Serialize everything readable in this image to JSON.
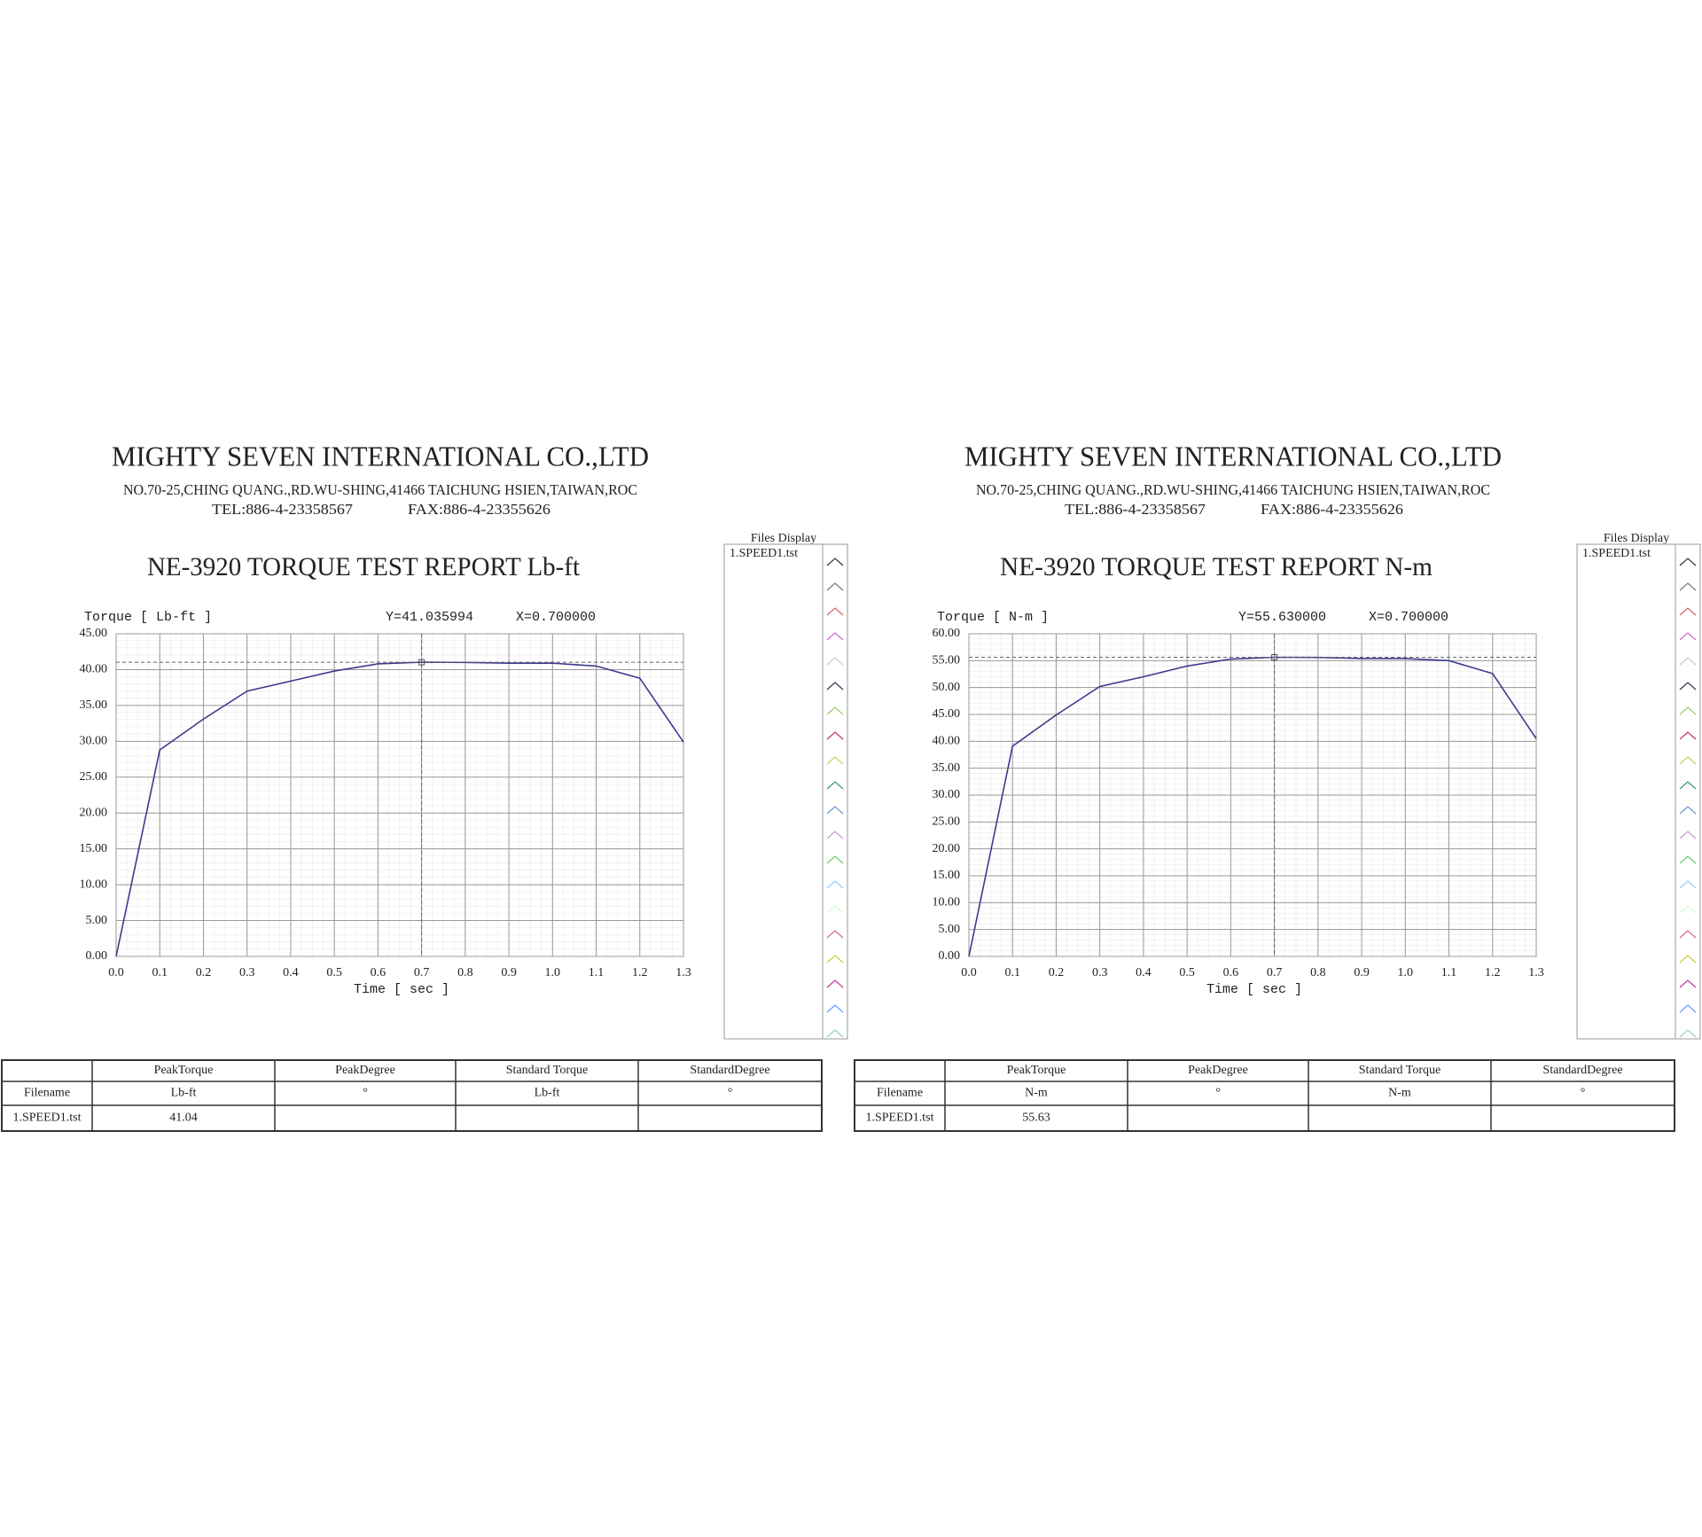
{
  "chart_data": [
    {
      "type": "line",
      "title": "NE-3920 TORQUE TEST REPORT Lb-ft",
      "y_label": "Torque [ Lb-ft ]",
      "x_label": "Time [ sec ]",
      "x": [
        0,
        0.1,
        0.2,
        0.3,
        0.4,
        0.5,
        0.6,
        0.7,
        0.8,
        0.9,
        1.0,
        1.1,
        1.2,
        1.3
      ],
      "values": [
        0,
        28.8,
        33.1,
        37.0,
        38.4,
        39.8,
        40.8,
        41.04,
        41.0,
        40.9,
        40.9,
        40.5,
        38.8,
        29.9
      ],
      "color": "#3b3b8f",
      "xlim": [
        0,
        1.3
      ],
      "ylim": [
        0,
        45
      ],
      "xticks": [
        {
          "value": 0,
          "label": "0.0"
        },
        0.1,
        0.2,
        0.3,
        0.4,
        0.5,
        0.6,
        0.7,
        0.8,
        0.9,
        {
          "value": 1,
          "label": "1.0"
        },
        1.1,
        1.2,
        1.3
      ],
      "yticks": [
        {
          "value": 0,
          "label": "0.00"
        },
        {
          "value": 5,
          "label": "5.00"
        },
        {
          "value": 10,
          "label": "10.00"
        },
        {
          "value": 15,
          "label": "15.00"
        },
        {
          "value": 20,
          "label": "20.00"
        },
        {
          "value": 25,
          "label": "25.00"
        },
        {
          "value": 30,
          "label": "30.00"
        },
        {
          "value": 35,
          "label": "35.00"
        },
        {
          "value": 40,
          "label": "40.00"
        },
        {
          "value": 45,
          "label": "45.00"
        }
      ],
      "grid": true,
      "cursor_y": {
        "value": 41.035994,
        "label": "Y=41.035994"
      },
      "cursor_x": {
        "value": 0.7,
        "label": "X=0.700000"
      }
    },
    {
      "type": "line",
      "title": "NE-3920 TORQUE TEST REPORT N-m",
      "y_label": "Torque [ N-m ]",
      "x_label": "Time [ sec ]",
      "x": [
        0,
        0.1,
        0.2,
        0.3,
        0.4,
        0.5,
        0.6,
        0.7,
        0.8,
        0.9,
        1.0,
        1.1,
        1.2,
        1.3
      ],
      "values": [
        0,
        39.1,
        44.9,
        50.2,
        52.0,
        54.0,
        55.3,
        55.63,
        55.6,
        55.4,
        55.4,
        55.0,
        52.6,
        40.5
      ],
      "color": "#3b3b8f",
      "xlim": [
        0,
        1.3
      ],
      "ylim": [
        0,
        60
      ],
      "xticks": [
        {
          "value": 0,
          "label": "0.0"
        },
        0.1,
        0.2,
        0.3,
        0.4,
        0.5,
        0.6,
        0.7,
        0.8,
        0.9,
        {
          "value": 1,
          "label": "1.0"
        },
        1.1,
        1.2,
        1.3
      ],
      "yticks": [
        {
          "value": 0,
          "label": "0.00"
        },
        {
          "value": 5,
          "label": "5.00"
        },
        {
          "value": 10,
          "label": "10.00"
        },
        {
          "value": 15,
          "label": "15.00"
        },
        {
          "value": 20,
          "label": "20.00"
        },
        {
          "value": 25,
          "label": "25.00"
        },
        {
          "value": 30,
          "label": "30.00"
        },
        {
          "value": 35,
          "label": "35.00"
        },
        {
          "value": 40,
          "label": "40.00"
        },
        {
          "value": 45,
          "label": "45.00"
        },
        {
          "value": 50,
          "label": "50.00"
        },
        {
          "value": 55,
          "label": "55.00"
        },
        {
          "value": 60,
          "label": "60.00"
        }
      ],
      "grid": true,
      "cursor_y": {
        "value": 55.63,
        "label": "Y=55.630000"
      },
      "cursor_x": {
        "value": 0.7,
        "label": "X=0.700000"
      }
    }
  ],
  "reports": [
    {
      "company": "MIGHTY SEVEN INTERNATIONAL CO.,LTD",
      "address": "NO.70-25,CHING QUANG.,RD.WU-SHING,41466 TAICHUNG HSIEN,TAIWAN,ROC",
      "tel": "TEL:886-4-23358567",
      "fax": "FAX:886-4-23355626",
      "files_title": "Files Display",
      "files": [
        "1.SPEED1.tst"
      ],
      "table": {
        "header": [
          "PeakTorque",
          "PeakDegree",
          "Standard Torque",
          "StandardDegree"
        ],
        "units": [
          "Filename",
          "Lb-ft",
          "°",
          "Lb-ft",
          "°"
        ],
        "row": [
          "1.SPEED1.tst",
          41.04
        ]
      }
    },
    {
      "company": "MIGHTY SEVEN INTERNATIONAL CO.,LTD",
      "address": "NO.70-25,CHING QUANG.,RD.WU-SHING,41466 TAICHUNG HSIEN,TAIWAN,ROC",
      "tel": "TEL:886-4-23358567",
      "fax": "FAX:886-4-23355626",
      "files_title": "Files Display",
      "files": [
        "1.SPEED1.tst"
      ],
      "table": {
        "header": [
          "PeakTorque",
          "PeakDegree",
          "Standard Torque",
          "StandardDegree"
        ],
        "units": [
          "Filename",
          "N-m",
          "°",
          "N-m",
          "°"
        ],
        "row": [
          "1.SPEED1.tst",
          55.63
        ]
      }
    }
  ]
}
